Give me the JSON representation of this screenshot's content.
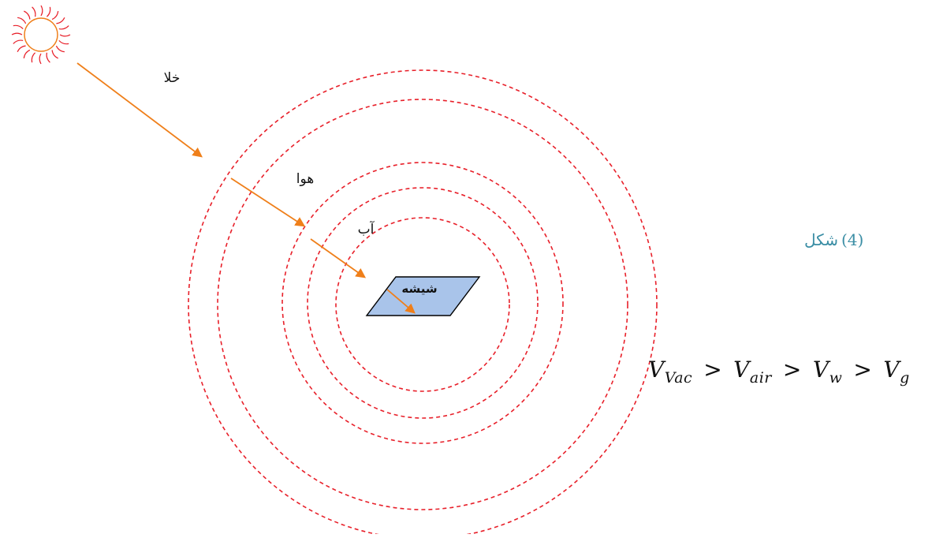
{
  "labels": {
    "vacuum": "خلا",
    "air": "هوا",
    "water": "آب",
    "glass": "شیشه"
  },
  "caption": {
    "word": "شکل",
    "number": "(4)"
  },
  "equation": {
    "terms": [
      {
        "base": "V",
        "sub": "Vac"
      },
      {
        "base": "V",
        "sub": "air"
      },
      {
        "base": "V",
        "sub": "w"
      },
      {
        "base": "V",
        "sub": "g"
      }
    ],
    "operator": ">"
  },
  "colors": {
    "circles": "#e8202a",
    "arrows": "#ef7f1a",
    "sun_stroke": "#ef7f1a",
    "sun_rays": "#e8202a",
    "glass_fill": "#a9c4ea",
    "caption": "#3b8ea5"
  },
  "icons": {
    "sun": "sun-icon"
  }
}
